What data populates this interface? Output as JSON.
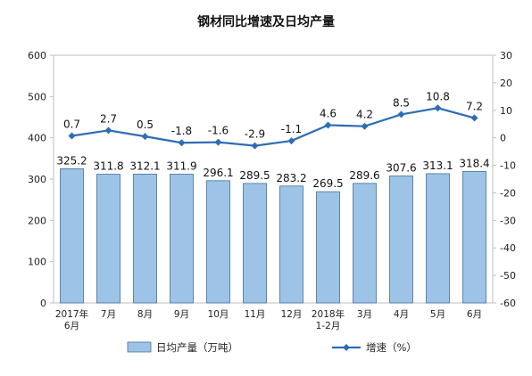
{
  "chart_data": {
    "type": "bar+line",
    "title": "钢材同比增速及日均产量",
    "categories": [
      "2017年\n6月",
      "7月",
      "8月",
      "9月",
      "10月",
      "11月",
      "12月",
      "2018年\n1-2月",
      "3月",
      "4月",
      "5月",
      "6月"
    ],
    "series": [
      {
        "name": "日均产量（万吨）",
        "type": "bar",
        "axis": "left",
        "values": [
          325.2,
          311.8,
          312.1,
          311.9,
          296.1,
          289.5,
          283.2,
          269.5,
          289.6,
          307.6,
          313.1,
          318.4
        ],
        "color": "#9DC3E6"
      },
      {
        "name": "增速（%）",
        "type": "line",
        "axis": "right",
        "values": [
          0.7,
          2.7,
          0.5,
          -1.8,
          -1.6,
          -2.9,
          -1.1,
          4.6,
          4.2,
          8.5,
          10.8,
          7.2
        ],
        "color": "#2E6DB4"
      }
    ],
    "ylim_left": [
      0,
      600
    ],
    "yticks_left": [
      "0",
      "100",
      "200",
      "300",
      "400",
      "500",
      "600"
    ],
    "ylim_right": [
      -60,
      30
    ],
    "yticks_right": [
      "-60",
      "-50",
      "-40",
      "-30",
      "-20",
      "-10",
      "0",
      "10",
      "20",
      "30"
    ],
    "grid": false,
    "legend_position": "bottom"
  }
}
